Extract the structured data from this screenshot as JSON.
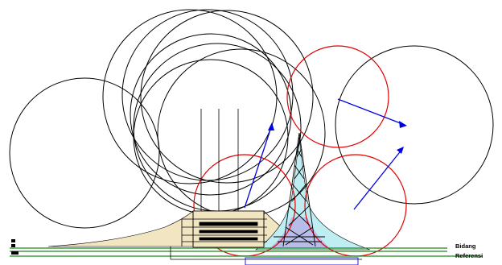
{
  "labels": {
    "reference_line1": "Bidang",
    "reference_line2": "Referensi"
  },
  "colors": {
    "black_circle": "#000000",
    "red_circle": "#e00000",
    "blue_ray": "#0000e6",
    "ground_green": "#1a8a1a",
    "roof_zone_fill": "#f2e6c2",
    "tower_zone_fill": "#bfeef2",
    "overlap_fill": "#b6b6e8"
  },
  "icons": [
    "lightning-protection-diagram"
  ]
}
